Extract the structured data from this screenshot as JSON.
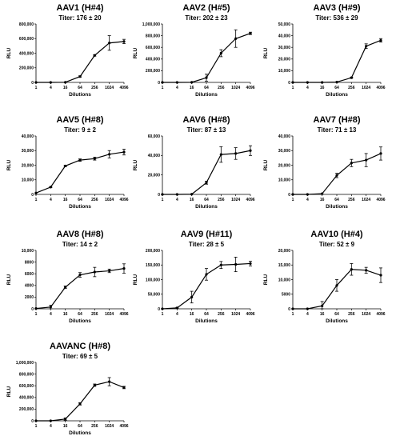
{
  "chart_data": [
    {
      "type": "line",
      "title": "AAV1 (H#4)",
      "subtitle": "Titer: 176 ± 20",
      "xlabel": "Dilutions",
      "ylabel": "RLU",
      "x_scale": "log2",
      "categories": [
        "1",
        "4",
        "16",
        "64",
        "256",
        "1024",
        "4096"
      ],
      "values": [
        0,
        0,
        2000,
        80000,
        370000,
        540000,
        560000
      ],
      "errors": [
        0,
        0,
        0,
        10000,
        10000,
        100000,
        30000
      ],
      "ylim": [
        0,
        800000
      ],
      "y_ticks": [
        "0",
        "200,000",
        "400,000",
        "600,000",
        "800,000"
      ]
    },
    {
      "type": "line",
      "title": "AAV2 (H#5)",
      "subtitle": "Titer: 202 ± 23",
      "xlabel": "Dilutions",
      "ylabel": "RLU",
      "x_scale": "log2",
      "categories": [
        "1",
        "4",
        "16",
        "64",
        "256",
        "1024",
        "4096"
      ],
      "values": [
        0,
        0,
        2000,
        80000,
        500000,
        750000,
        840000
      ],
      "errors": [
        0,
        0,
        0,
        60000,
        60000,
        150000,
        20000
      ],
      "ylim": [
        0,
        1000000
      ],
      "y_ticks": [
        "0",
        "200,000",
        "400,000",
        "600,000",
        "800,000",
        "1,000,000"
      ]
    },
    {
      "type": "line",
      "title": "AAV3 (H#9)",
      "subtitle": "Titer: 536 ± 29",
      "xlabel": "Dilutions",
      "ylabel": "RLU",
      "x_scale": "log2",
      "categories": [
        "1",
        "4",
        "16",
        "64",
        "256",
        "1024",
        "4096"
      ],
      "values": [
        0,
        0,
        0,
        300,
        4000,
        31000,
        36000
      ],
      "errors": [
        0,
        0,
        0,
        0,
        500,
        2000,
        1500
      ],
      "ylim": [
        0,
        50000
      ],
      "y_ticks": [
        "0",
        "10,000",
        "20,000",
        "30,000",
        "40,000",
        "50,000"
      ]
    },
    {
      "type": "line",
      "title": "AAV5 (H#8)",
      "subtitle": "Titer: 9 ± 2",
      "xlabel": "Dilutions",
      "ylabel": "RLU",
      "x_scale": "log2",
      "categories": [
        "1",
        "4",
        "16",
        "64",
        "256",
        "1024",
        "4096"
      ],
      "values": [
        1000,
        5000,
        19500,
        23500,
        24500,
        27500,
        29000
      ],
      "errors": [
        0,
        300,
        500,
        800,
        1000,
        2500,
        2000
      ],
      "ylim": [
        0,
        40000
      ],
      "y_ticks": [
        "0",
        "10,000",
        "20,000",
        "30,000",
        "40,000"
      ]
    },
    {
      "type": "line",
      "title": "AAV6 (H#8)",
      "subtitle": "Titer: 87 ± 13",
      "xlabel": "Dilutions",
      "ylabel": "RLU",
      "x_scale": "log2",
      "categories": [
        "1",
        "4",
        "16",
        "64",
        "256",
        "1024",
        "4096"
      ],
      "values": [
        0,
        0,
        200,
        12000,
        41000,
        42000,
        45000
      ],
      "errors": [
        0,
        0,
        0,
        1500,
        8000,
        6000,
        5000
      ],
      "ylim": [
        0,
        60000
      ],
      "y_ticks": [
        "0",
        "20,000",
        "40,000",
        "60,000"
      ]
    },
    {
      "type": "line",
      "title": "AAV7 (H#8)",
      "subtitle": "Titer: 71 ± 13",
      "xlabel": "Dilutions",
      "ylabel": "RLU",
      "x_scale": "log2",
      "categories": [
        "1",
        "4",
        "16",
        "64",
        "256",
        "1024",
        "4096"
      ],
      "values": [
        0,
        0,
        500,
        13000,
        21500,
        23500,
        28000
      ],
      "errors": [
        0,
        0,
        0,
        1500,
        2500,
        4500,
        4500
      ],
      "ylim": [
        0,
        40000
      ],
      "y_ticks": [
        "0",
        "10,000",
        "20,000",
        "30,000",
        "40,000"
      ]
    },
    {
      "type": "line",
      "title": "AAV8 (H#8)",
      "subtitle": "Titer: 14 ± 2",
      "xlabel": "Dilutions",
      "ylabel": "RLU",
      "x_scale": "log2",
      "categories": [
        "1",
        "4",
        "16",
        "64",
        "256",
        "1024",
        "4096"
      ],
      "values": [
        50,
        300,
        3700,
        5800,
        6300,
        6500,
        6900
      ],
      "errors": [
        0,
        300,
        200,
        400,
        800,
        300,
        800
      ],
      "ylim": [
        0,
        10000
      ],
      "y_ticks": [
        "0",
        "2000",
        "4000",
        "6000",
        "8000",
        "10,000"
      ]
    },
    {
      "type": "line",
      "title": "AAV9 (H#11)",
      "subtitle": "Titer: 28 ± 5",
      "xlabel": "Dilutions",
      "ylabel": "RLU",
      "x_scale": "log2",
      "categories": [
        "1",
        "4",
        "16",
        "64",
        "256",
        "1024",
        "4096"
      ],
      "values": [
        0,
        3000,
        40000,
        118000,
        150000,
        152000,
        155000
      ],
      "errors": [
        0,
        1000,
        20000,
        20000,
        12000,
        25000,
        8000
      ],
      "ylim": [
        0,
        200000
      ],
      "y_ticks": [
        "0",
        "50,000",
        "100,000",
        "150,000",
        "200,000"
      ]
    },
    {
      "type": "line",
      "title": "AAV10 (H#4)",
      "subtitle": "Titer: 52 ± 9",
      "xlabel": "Dilutions",
      "ylabel": "RLU",
      "x_scale": "log2",
      "categories": [
        "1",
        "4",
        "16",
        "64",
        "256",
        "1024",
        "4096"
      ],
      "values": [
        0,
        0,
        1000,
        8000,
        13500,
        13200,
        11500
      ],
      "errors": [
        0,
        0,
        1500,
        2000,
        2000,
        1000,
        2500
      ],
      "ylim": [
        0,
        20000
      ],
      "y_ticks": [
        "0",
        "5000",
        "10,000",
        "15,000",
        "20,000"
      ]
    },
    {
      "type": "line",
      "title": "AAVANC (H#8)",
      "subtitle": "Titer: 69 ± 5",
      "xlabel": "Dilutions",
      "ylabel": "RLU",
      "x_scale": "log2",
      "categories": [
        "1",
        "4",
        "16",
        "64",
        "256",
        "1024",
        "4096"
      ],
      "values": [
        0,
        0,
        30000,
        290000,
        610000,
        670000,
        570000
      ],
      "errors": [
        0,
        0,
        20000,
        20000,
        20000,
        70000,
        20000
      ],
      "ylim": [
        0,
        1000000
      ],
      "y_ticks": [
        "0",
        "200,000",
        "400,000",
        "600,000",
        "800,000",
        "1,000,000"
      ]
    }
  ]
}
